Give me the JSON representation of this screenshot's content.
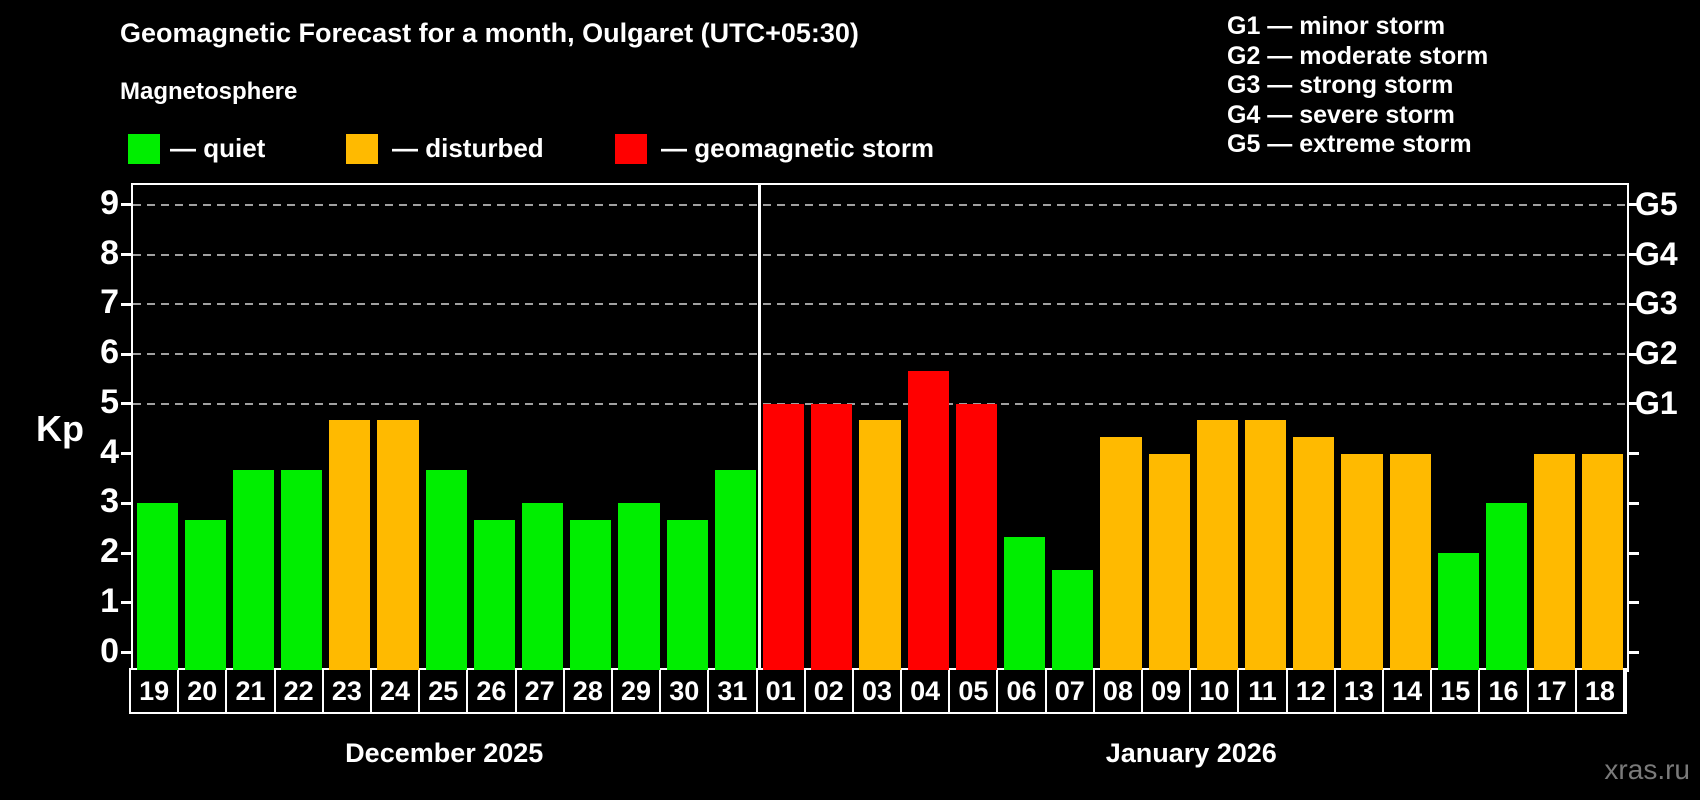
{
  "title": "Geomagnetic Forecast for a month, Oulgaret (UTC+05:30)",
  "subtitle": "Magnetosphere",
  "watermark": "xras.ru",
  "legend": [
    {
      "state": "quiet",
      "label": "— quiet",
      "color": "#00ee00"
    },
    {
      "state": "disturbed",
      "label": "— disturbed",
      "color": "#ffba00"
    },
    {
      "state": "storm",
      "label": "— geomagnetic storm",
      "color": "#ff0000"
    }
  ],
  "g_legend": [
    {
      "code": "G1",
      "label": "G1 — minor storm"
    },
    {
      "code": "G2",
      "label": "G2 — moderate storm"
    },
    {
      "code": "G3",
      "label": "G3 — strong storm"
    },
    {
      "code": "G4",
      "label": "G4 — severe storm"
    },
    {
      "code": "G5",
      "label": "G5 — extreme storm"
    }
  ],
  "colors": {
    "quiet": "#00ee00",
    "disturbed": "#ffba00",
    "storm": "#ff0000",
    "background": "#000000",
    "axis": "#ffffff",
    "grid": "#a0a0a0",
    "watermark": "#7a7a7a"
  },
  "chart_data": {
    "type": "bar",
    "title": "Geomagnetic Forecast for a month, Oulgaret (UTC+05:30)",
    "ylabel": "Kp",
    "ylim": [
      -0.35,
      9.4
    ],
    "yticks": [
      0,
      1,
      2,
      3,
      4,
      5,
      6,
      7,
      8,
      9
    ],
    "grid": "horizontal dashed lines only at G-storm levels 5-9",
    "g_levels": [
      {
        "value": 5,
        "label": "G1"
      },
      {
        "value": 6,
        "label": "G2"
      },
      {
        "value": 7,
        "label": "G3"
      },
      {
        "value": 8,
        "label": "G4"
      },
      {
        "value": 9,
        "label": "G5"
      }
    ],
    "months": [
      {
        "label": "December 2025",
        "days": [
          {
            "day": "19",
            "kp": 3.0,
            "state": "quiet"
          },
          {
            "day": "20",
            "kp": 2.67,
            "state": "quiet"
          },
          {
            "day": "21",
            "kp": 3.67,
            "state": "quiet"
          },
          {
            "day": "22",
            "kp": 3.67,
            "state": "quiet"
          },
          {
            "day": "23",
            "kp": 4.67,
            "state": "disturbed"
          },
          {
            "day": "24",
            "kp": 4.67,
            "state": "disturbed"
          },
          {
            "day": "25",
            "kp": 3.67,
            "state": "quiet"
          },
          {
            "day": "26",
            "kp": 2.67,
            "state": "quiet"
          },
          {
            "day": "27",
            "kp": 3.0,
            "state": "quiet"
          },
          {
            "day": "28",
            "kp": 2.67,
            "state": "quiet"
          },
          {
            "day": "29",
            "kp": 3.0,
            "state": "quiet"
          },
          {
            "day": "30",
            "kp": 2.67,
            "state": "quiet"
          },
          {
            "day": "31",
            "kp": 3.67,
            "state": "quiet"
          }
        ]
      },
      {
        "label": "January 2026",
        "days": [
          {
            "day": "01",
            "kp": 5.0,
            "state": "storm"
          },
          {
            "day": "02",
            "kp": 5.0,
            "state": "storm"
          },
          {
            "day": "03",
            "kp": 4.67,
            "state": "disturbed"
          },
          {
            "day": "04",
            "kp": 5.67,
            "state": "storm"
          },
          {
            "day": "05",
            "kp": 5.0,
            "state": "storm"
          },
          {
            "day": "06",
            "kp": 2.33,
            "state": "quiet"
          },
          {
            "day": "07",
            "kp": 1.67,
            "state": "quiet"
          },
          {
            "day": "08",
            "kp": 4.33,
            "state": "disturbed"
          },
          {
            "day": "09",
            "kp": 4.0,
            "state": "disturbed"
          },
          {
            "day": "10",
            "kp": 4.67,
            "state": "disturbed"
          },
          {
            "day": "11",
            "kp": 4.67,
            "state": "disturbed"
          },
          {
            "day": "12",
            "kp": 4.33,
            "state": "disturbed"
          },
          {
            "day": "13",
            "kp": 4.0,
            "state": "disturbed"
          },
          {
            "day": "14",
            "kp": 4.0,
            "state": "disturbed"
          },
          {
            "day": "15",
            "kp": 2.0,
            "state": "quiet"
          },
          {
            "day": "16",
            "kp": 3.0,
            "state": "quiet"
          },
          {
            "day": "17",
            "kp": 4.0,
            "state": "disturbed"
          },
          {
            "day": "18",
            "kp": 4.0,
            "state": "disturbed"
          }
        ]
      }
    ]
  }
}
